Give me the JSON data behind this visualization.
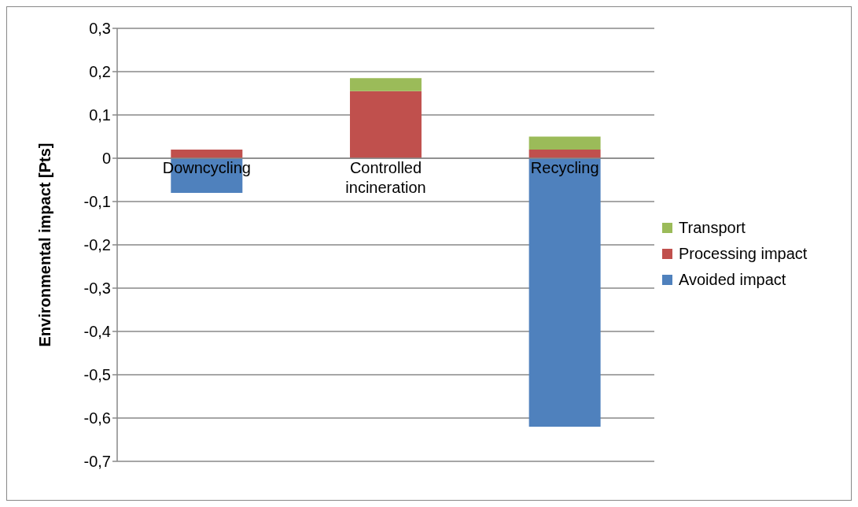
{
  "chart_data": {
    "type": "bar",
    "stacked": true,
    "ylabel": "Environmental impact [Pts]",
    "categories": [
      "Downcycling",
      "Controlled incineration",
      "Recycling"
    ],
    "series": [
      {
        "name": "Avoided impact",
        "color": "#4f81bd",
        "values": [
          -0.08,
          0,
          -0.62
        ]
      },
      {
        "name": "Processing impact",
        "color": "#c0504d",
        "values": [
          0.02,
          0.155,
          0.02
        ]
      },
      {
        "name": "Transport",
        "color": "#9bbb59",
        "values": [
          0,
          0.03,
          0.03
        ]
      }
    ],
    "ylim": [
      -0.7,
      0.3
    ],
    "yticks": [
      {
        "value": -0.7,
        "label": "-0,7"
      },
      {
        "value": -0.6,
        "label": "-0,6"
      },
      {
        "value": -0.5,
        "label": "-0,5"
      },
      {
        "value": -0.4,
        "label": "-0,4"
      },
      {
        "value": -0.3,
        "label": "-0,3"
      },
      {
        "value": -0.2,
        "label": "-0,2"
      },
      {
        "value": -0.1,
        "label": "-0,1"
      },
      {
        "value": 0,
        "label": "0"
      },
      {
        "value": 0.1,
        "label": "0,1"
      },
      {
        "value": 0.2,
        "label": "0,2"
      },
      {
        "value": 0.3,
        "label": "0,3"
      }
    ],
    "grid": "y",
    "legend": "right"
  }
}
